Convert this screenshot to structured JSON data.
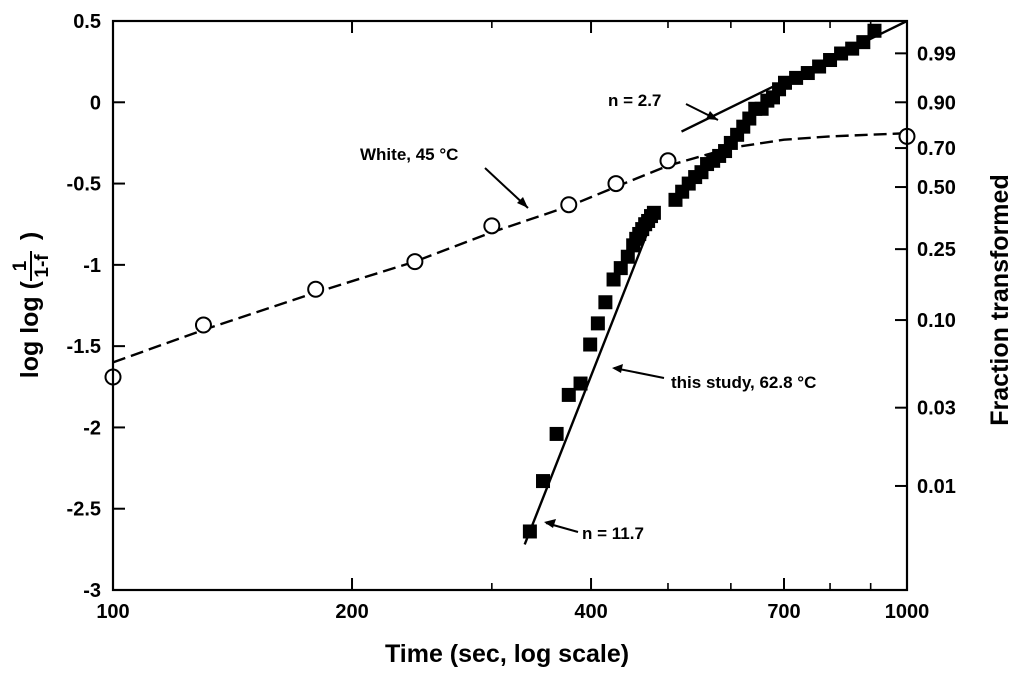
{
  "chart_data": {
    "type": "scatter",
    "xlabel": "Time (sec, log scale)",
    "ylabel_prefix": "log log (",
    "ylabel_frac_num": "1",
    "ylabel_frac_den": "1-f",
    "ylabel_suffix": ")",
    "y2label": "Fraction transformed",
    "x_scale": "log",
    "xlim": [
      100,
      1000
    ],
    "ylim": [
      -3,
      0.5
    ],
    "x_ticks": [
      100,
      200,
      400,
      700,
      1000
    ],
    "x_tick_labels": [
      "100",
      "200",
      "400",
      "700",
      "1000"
    ],
    "y_ticks": [
      -3,
      -2.5,
      -2,
      -1.5,
      -1,
      -0.5,
      0,
      0.5
    ],
    "y_tick_labels": [
      "-3",
      "-2.5",
      "-2",
      "-1.5",
      "-1",
      "-0.5",
      "0",
      "0.5"
    ],
    "y2_ticks": [
      0.99,
      0.9,
      0.7,
      0.5,
      0.25,
      0.1,
      0.03,
      0.01
    ],
    "y2_tick_labels": [
      "0.99",
      "0.90",
      "0.70",
      "0.50",
      "0.25",
      "0.10",
      "0.03",
      "0.01"
    ],
    "grid": false,
    "series": [
      {
        "name": "White, 45 °C",
        "marker": "open-circle",
        "line": "dashed",
        "x": [
          100,
          130,
          180,
          240,
          300,
          375,
          430,
          500,
          1000
        ],
        "y": [
          -1.69,
          -1.37,
          -1.15,
          -0.98,
          -0.76,
          -0.63,
          -0.5,
          -0.36,
          -0.21
        ],
        "curve_x": [
          100,
          130,
          180,
          240,
          300,
          375,
          430,
          500,
          600,
          700,
          800,
          1000
        ],
        "curve_y": [
          -1.6,
          -1.4,
          -1.17,
          -0.98,
          -0.8,
          -0.64,
          -0.52,
          -0.39,
          -0.28,
          -0.23,
          -0.21,
          -0.19
        ]
      },
      {
        "name": "this study, 62.8 °C",
        "marker": "filled-square",
        "x": [
          335,
          348,
          362,
          375,
          388,
          399,
          408,
          417,
          427,
          436,
          445,
          452,
          456,
          460,
          464,
          468,
          472,
          476,
          480,
          511,
          521,
          531,
          541,
          551,
          560,
          570,
          580,
          590,
          600,
          611,
          622,
          633,
          644,
          656,
          667,
          678,
          690,
          702,
          725,
          750,
          775,
          800,
          826,
          853,
          881,
          910
        ],
        "y": [
          -2.64,
          -2.33,
          -2.04,
          -1.8,
          -1.73,
          -1.49,
          -1.36,
          -1.23,
          -1.09,
          -1.02,
          -0.95,
          -0.88,
          -0.84,
          -0.81,
          -0.78,
          -0.75,
          -0.73,
          -0.7,
          -0.68,
          -0.6,
          -0.55,
          -0.5,
          -0.46,
          -0.43,
          -0.38,
          -0.36,
          -0.33,
          -0.3,
          -0.25,
          -0.2,
          -0.15,
          -0.1,
          -0.04,
          -0.04,
          0.01,
          0.03,
          0.08,
          0.12,
          0.15,
          0.18,
          0.22,
          0.26,
          0.3,
          0.33,
          0.37,
          0.44
        ]
      }
    ],
    "fit_lines": [
      {
        "label": "n = 11.7",
        "x": [
          330,
          480
        ],
        "y": [
          -2.72,
          -0.7
        ]
      },
      {
        "label": "n = 2.7",
        "x": [
          520,
          1000
        ],
        "y": [
          -0.18,
          0.5
        ]
      }
    ],
    "annotations": [
      {
        "text": "White, 45 °C",
        "target_series": 0
      },
      {
        "text": "n = 2.7",
        "target_fit": 1
      },
      {
        "text": "this study, 62.8 °C",
        "target_series": 1
      },
      {
        "text": "n = 11.7",
        "target_fit": 0
      }
    ]
  }
}
